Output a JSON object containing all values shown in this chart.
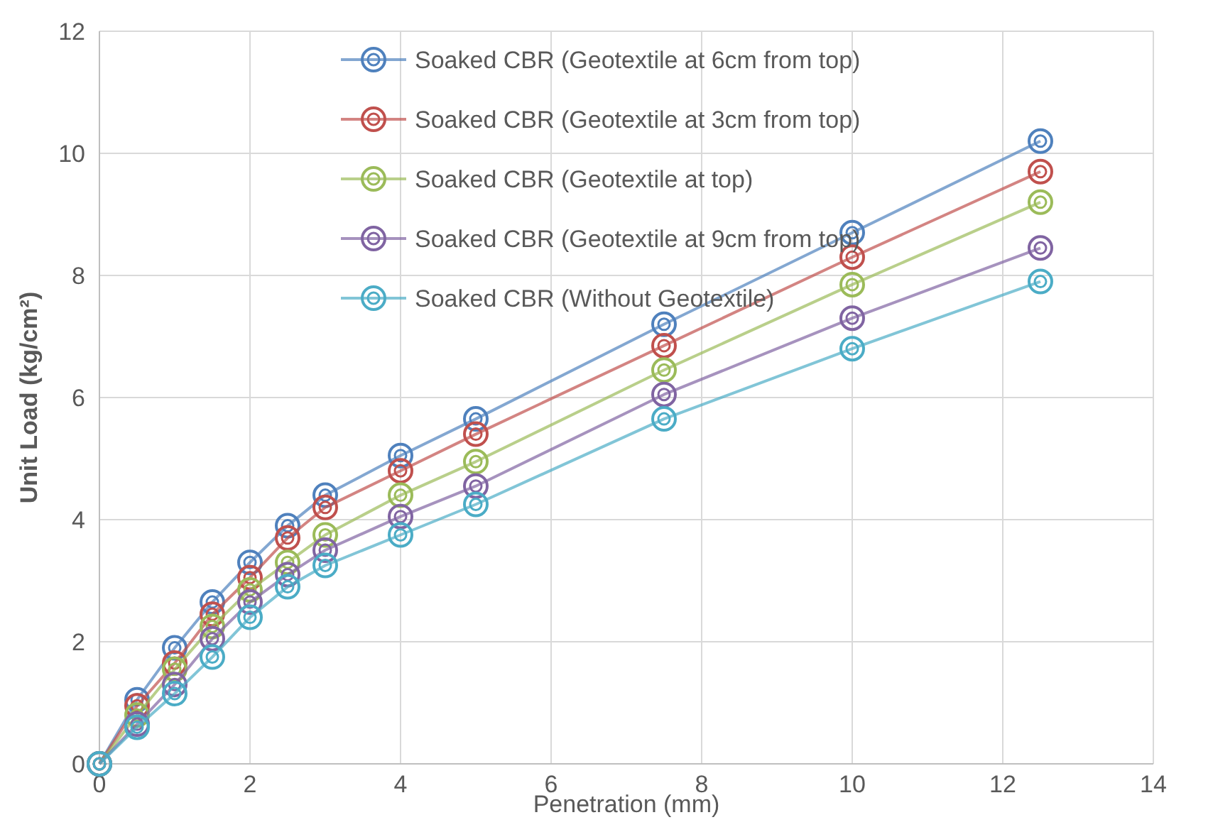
{
  "chart_data": {
    "type": "line",
    "xlabel": "Penetration (mm)",
    "ylabel": "Unit Load (kg/cm²)",
    "x": [
      0,
      0.5,
      1,
      1.5,
      2,
      2.5,
      3,
      4,
      5,
      7.5,
      10,
      12.5
    ],
    "xlim": [
      0,
      14
    ],
    "xticks": [
      0,
      2,
      4,
      6,
      8,
      10,
      12,
      14
    ],
    "ylim": [
      0,
      12
    ],
    "yticks": [
      0,
      2,
      4,
      6,
      8,
      10,
      12
    ],
    "grid": true,
    "legend": "top",
    "marker": "circle",
    "line_style": "solid",
    "series": [
      {
        "name": "Soaked CBR (Geotextile at 6cm from top)",
        "color": "#4f81bd",
        "values": [
          0,
          1.05,
          1.9,
          2.65,
          3.3,
          3.9,
          4.4,
          5.05,
          5.65,
          7.2,
          8.7,
          10.2
        ]
      },
      {
        "name": "Soaked CBR (Geotextile at 3cm from top)",
        "color": "#c0504d",
        "values": [
          0,
          0.95,
          1.65,
          2.45,
          3.05,
          3.7,
          4.2,
          4.8,
          5.4,
          6.85,
          8.3,
          9.7
        ]
      },
      {
        "name": "Soaked CBR (Geotextile at top)",
        "color": "#9bbb59",
        "values": [
          0,
          0.8,
          1.55,
          2.25,
          2.85,
          3.3,
          3.75,
          4.4,
          4.95,
          6.45,
          7.85,
          9.2
        ]
      },
      {
        "name": "Soaked CBR (Geotextile at 9cm from top)",
        "color": "#8064a2",
        "values": [
          0,
          0.65,
          1.3,
          2.05,
          2.65,
          3.1,
          3.5,
          4.05,
          4.55,
          6.05,
          7.3,
          8.45
        ]
      },
      {
        "name": "Soaked CBR (Without Geotextile)",
        "color": "#4bacc6",
        "values": [
          0,
          0.6,
          1.15,
          1.75,
          2.4,
          2.9,
          3.25,
          3.75,
          4.25,
          5.65,
          6.8,
          7.9
        ]
      }
    ]
  }
}
